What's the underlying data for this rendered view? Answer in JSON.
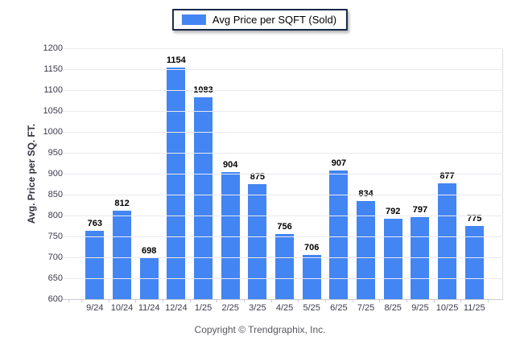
{
  "legend": {
    "label": "Avg Price per SQFT (Sold)",
    "swatch_color": "#4385f3"
  },
  "y_axis": {
    "title": "Avg. Price per SQ. FT."
  },
  "footer": {
    "text": "Copyright © Trendgraphix, Inc."
  },
  "colors": {
    "bar": "#4385f3",
    "legend_border": "#17294d",
    "gridline": "#eaeaf0",
    "axis_label": "#3b3b4d",
    "value_label": "#000000",
    "footer_text": "#58585f"
  },
  "chart_data": {
    "type": "bar",
    "title": "",
    "xlabel": "",
    "ylabel": "Avg. Price per SQ. FT.",
    "categories": [
      "9/24",
      "10/24",
      "11/24",
      "12/24",
      "1/25",
      "2/25",
      "3/25",
      "4/25",
      "5/25",
      "6/25",
      "7/25",
      "8/25",
      "9/25",
      "10/25",
      "11/25"
    ],
    "values": [
      763,
      812,
      698,
      1154,
      1083,
      904,
      875,
      756,
      706,
      907,
      834,
      792,
      797,
      877,
      775
    ],
    "ylim": [
      600,
      1200
    ],
    "ytick_step": 50,
    "grid": true,
    "value_labels": true,
    "legend": [
      "Avg Price per SQFT (Sold)"
    ],
    "legend_position": "top-center",
    "bar_color": "#4385f3"
  }
}
